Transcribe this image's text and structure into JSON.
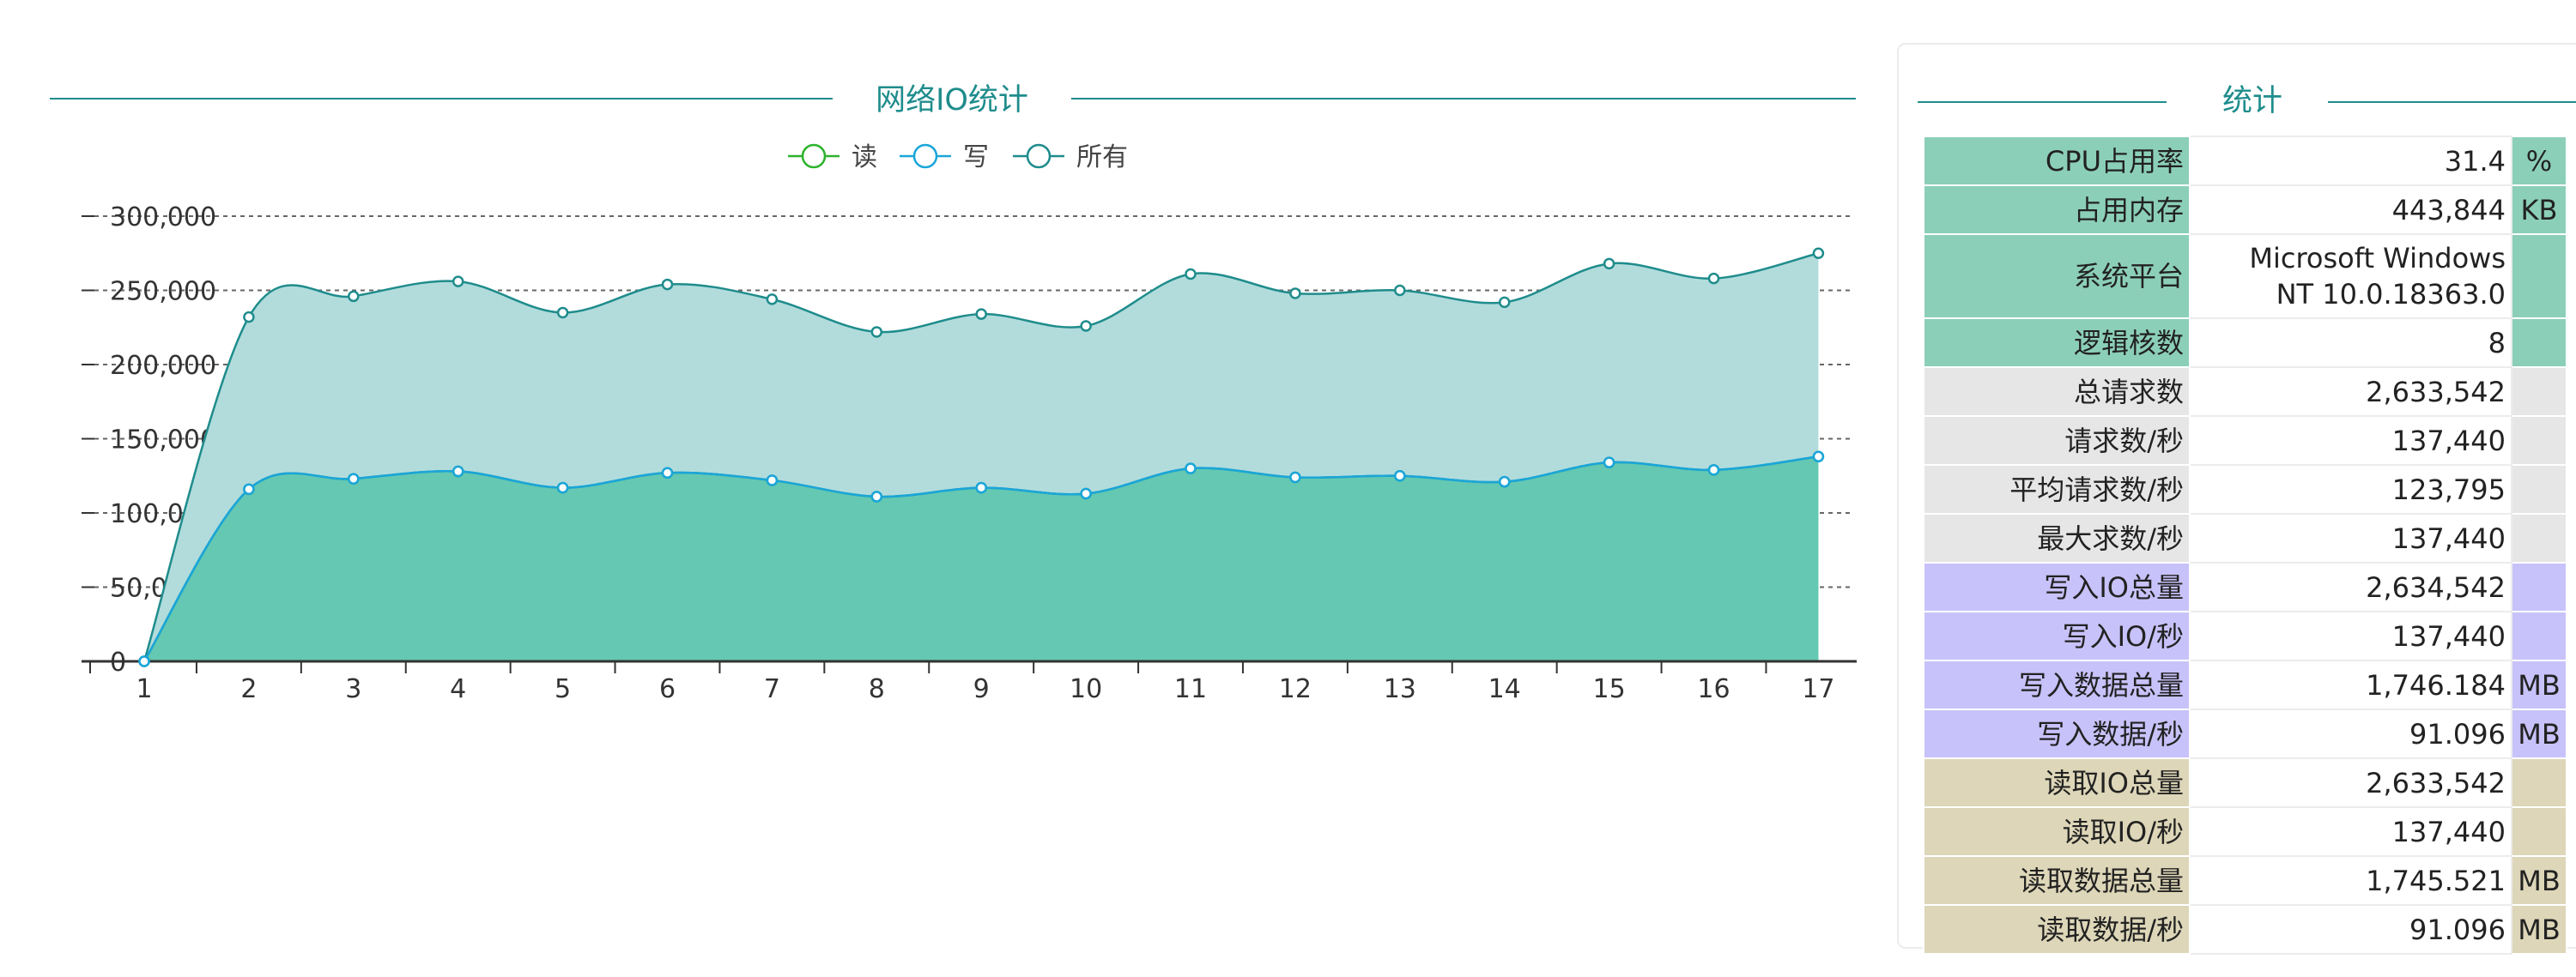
{
  "colors": {
    "title": "#1f8c8c",
    "read": "#2db32d",
    "write": "#1aa6d9",
    "all": "#1f8c8c",
    "area_all": "#b2dcdc",
    "area_read": "#64c8b2",
    "grid": "#666666",
    "group_system": "#8ccfb8",
    "group_request": "#e6e6e6",
    "group_write": "#c8c2fa",
    "group_read": "#ddd6b8"
  },
  "chart_data": {
    "type": "area",
    "title": "网络IO统计",
    "legend": [
      "读",
      "写",
      "所有"
    ],
    "legend_position": "top-center",
    "x": [
      1,
      2,
      3,
      4,
      5,
      6,
      7,
      8,
      9,
      10,
      11,
      12,
      13,
      14,
      15,
      16,
      17
    ],
    "x_tick_labels": [
      "1",
      "2",
      "3",
      "4",
      "5",
      "6",
      "7",
      "8",
      "9",
      "10",
      "11",
      "12",
      "13",
      "14",
      "15",
      "16",
      "17"
    ],
    "y_tick_labels": [
      "0",
      "50,000",
      "100,000",
      "150,000",
      "200,000",
      "250,000",
      "300,000"
    ],
    "ylim": [
      0,
      300000
    ],
    "grid": true,
    "series": [
      {
        "name": "读",
        "values": [
          0,
          116000,
          123000,
          128000,
          117000,
          127000,
          122000,
          111000,
          117000,
          113000,
          130000,
          124000,
          125000,
          121000,
          134000,
          129000,
          138000
        ]
      },
      {
        "name": "写",
        "values": [
          0,
          116000,
          123000,
          128000,
          117000,
          127000,
          122000,
          111000,
          117000,
          113000,
          130000,
          124000,
          125000,
          121000,
          134000,
          129000,
          138000
        ]
      },
      {
        "name": "所有",
        "values": [
          0,
          232000,
          246000,
          256000,
          235000,
          254000,
          244000,
          222000,
          234000,
          226000,
          261000,
          248000,
          250000,
          242000,
          268000,
          258000,
          275000
        ]
      }
    ]
  },
  "stats": {
    "title": "统计",
    "rows": [
      {
        "label": "CPU占用率",
        "value": "31.4",
        "unit": "%",
        "group": "system"
      },
      {
        "label": "占用内存",
        "value": "443,844",
        "unit": "KB",
        "group": "system"
      },
      {
        "label": "系统平台",
        "value": "Microsoft Windows NT 10.0.18363.0",
        "unit": "",
        "group": "system"
      },
      {
        "label": "逻辑核数",
        "value": "8",
        "unit": "",
        "group": "system"
      },
      {
        "label": "总请求数",
        "value": "2,633,542",
        "unit": "",
        "group": "request"
      },
      {
        "label": "请求数/秒",
        "value": "137,440",
        "unit": "",
        "group": "request"
      },
      {
        "label": "平均请求数/秒",
        "value": "123,795",
        "unit": "",
        "group": "request"
      },
      {
        "label": "最大求数/秒",
        "value": "137,440",
        "unit": "",
        "group": "request"
      },
      {
        "label": "写入IO总量",
        "value": "2,634,542",
        "unit": "",
        "group": "write"
      },
      {
        "label": "写入IO/秒",
        "value": "137,440",
        "unit": "",
        "group": "write"
      },
      {
        "label": "写入数据总量",
        "value": "1,746.184",
        "unit": "MB",
        "group": "write"
      },
      {
        "label": "写入数据/秒",
        "value": "91.096",
        "unit": "MB",
        "group": "write"
      },
      {
        "label": "读取IO总量",
        "value": "2,633,542",
        "unit": "",
        "group": "read"
      },
      {
        "label": "读取IO/秒",
        "value": "137,440",
        "unit": "",
        "group": "read"
      },
      {
        "label": "读取数据总量",
        "value": "1,745.521",
        "unit": "MB",
        "group": "read"
      },
      {
        "label": "读取数据/秒",
        "value": "91.096",
        "unit": "MB",
        "group": "read"
      }
    ]
  }
}
